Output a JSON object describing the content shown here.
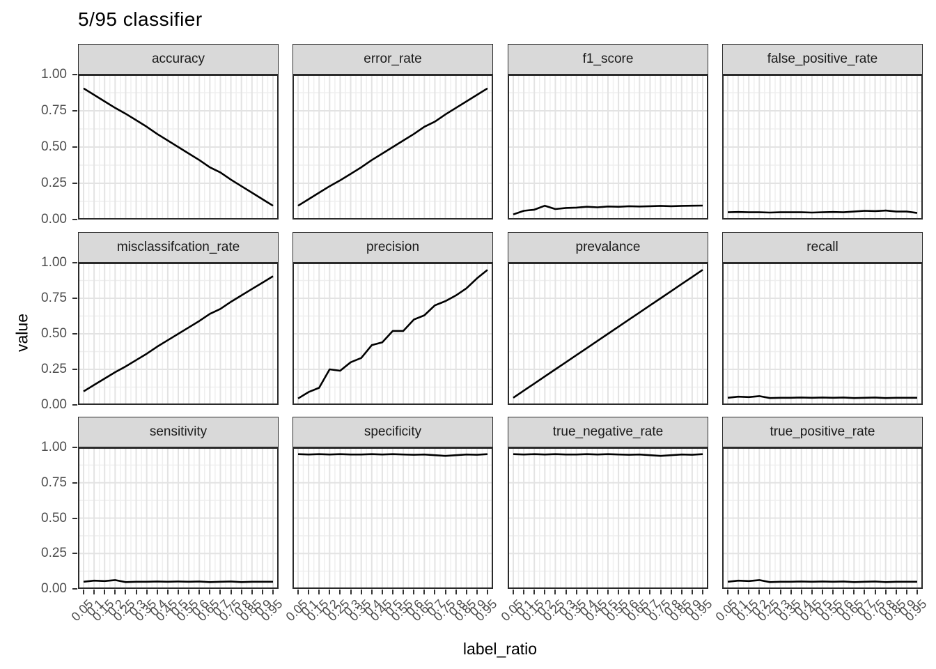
{
  "title": "5/95 classifier",
  "axes": {
    "x_label": "label_ratio",
    "y_label": "value",
    "x_tick_labels": [
      "0.05",
      "0.1",
      "0.15",
      "0.2",
      "0.25",
      "0.3",
      "0.35",
      "0.4",
      "0.45",
      "0.5",
      "0.55",
      "0.6",
      "0.65",
      "0.7",
      "0.75",
      "0.8",
      "0.85",
      "0.9",
      "0.95"
    ],
    "y_tick_labels": [
      "0.00",
      "0.25",
      "0.50",
      "0.75",
      "1.00"
    ]
  },
  "colors": {
    "background": "#ffffff",
    "strip_bg": "#d9d9d9",
    "panel_bg": "#ffffff",
    "grid_major": "#e3e3e3",
    "grid_minor": "#efefef",
    "panel_border": "#2b2b2b",
    "line": "#000000",
    "tick_label": "#4d4d4d",
    "tick_mark": "#333333",
    "text": "#000000"
  },
  "chart_data": {
    "type": "line",
    "title": "5/95 classifier",
    "xlabel": "label_ratio",
    "ylabel": "value",
    "xlim": [
      0.05,
      0.95
    ],
    "ylim": [
      0,
      1
    ],
    "grid": "major and minor, light gray on white, all facets",
    "legend": "none",
    "layout": "facet grid 3 rows x 4 columns, shared axes",
    "x": [
      0.05,
      0.1,
      0.15,
      0.2,
      0.25,
      0.3,
      0.35,
      0.4,
      0.45,
      0.5,
      0.55,
      0.6,
      0.65,
      0.7,
      0.75,
      0.8,
      0.85,
      0.9,
      0.95
    ],
    "facets": [
      {
        "name": "accuracy",
        "values": [
          0.905,
          0.86,
          0.815,
          0.77,
          0.73,
          0.685,
          0.64,
          0.59,
          0.545,
          0.5,
          0.455,
          0.41,
          0.36,
          0.325,
          0.275,
          0.23,
          0.185,
          0.14,
          0.095
        ]
      },
      {
        "name": "error_rate",
        "values": [
          0.095,
          0.14,
          0.185,
          0.23,
          0.27,
          0.315,
          0.36,
          0.41,
          0.455,
          0.5,
          0.545,
          0.59,
          0.64,
          0.675,
          0.725,
          0.77,
          0.815,
          0.86,
          0.905
        ]
      },
      {
        "name": "f1_score",
        "values": [
          0.035,
          0.06,
          0.068,
          0.095,
          0.072,
          0.08,
          0.082,
          0.088,
          0.084,
          0.09,
          0.088,
          0.092,
          0.09,
          0.092,
          0.094,
          0.092,
          0.094,
          0.095,
          0.096
        ]
      },
      {
        "name": "false_positive_rate",
        "values": [
          0.05,
          0.052,
          0.05,
          0.05,
          0.048,
          0.05,
          0.05,
          0.05,
          0.048,
          0.05,
          0.052,
          0.05,
          0.055,
          0.06,
          0.058,
          0.062,
          0.055,
          0.055,
          0.045
        ]
      },
      {
        "name": "misclassifcation_rate",
        "values": [
          0.095,
          0.14,
          0.185,
          0.23,
          0.27,
          0.315,
          0.36,
          0.41,
          0.455,
          0.5,
          0.545,
          0.59,
          0.64,
          0.675,
          0.725,
          0.77,
          0.815,
          0.86,
          0.905
        ]
      },
      {
        "name": "precision",
        "values": [
          0.045,
          0.09,
          0.12,
          0.25,
          0.24,
          0.3,
          0.33,
          0.42,
          0.44,
          0.52,
          0.52,
          0.6,
          0.63,
          0.7,
          0.73,
          0.77,
          0.82,
          0.89,
          0.95
        ]
      },
      {
        "name": "prevalance",
        "values": [
          0.05,
          0.1,
          0.15,
          0.2,
          0.25,
          0.3,
          0.35,
          0.4,
          0.45,
          0.5,
          0.55,
          0.6,
          0.65,
          0.7,
          0.75,
          0.8,
          0.85,
          0.9,
          0.95
        ]
      },
      {
        "name": "recall",
        "values": [
          0.05,
          0.058,
          0.055,
          0.062,
          0.048,
          0.05,
          0.05,
          0.052,
          0.05,
          0.052,
          0.05,
          0.052,
          0.048,
          0.05,
          0.052,
          0.048,
          0.05,
          0.05,
          0.05
        ]
      },
      {
        "name": "sensitivity",
        "values": [
          0.05,
          0.058,
          0.055,
          0.062,
          0.048,
          0.05,
          0.05,
          0.052,
          0.05,
          0.052,
          0.05,
          0.052,
          0.048,
          0.05,
          0.052,
          0.048,
          0.05,
          0.05,
          0.05
        ]
      },
      {
        "name": "specificity",
        "values": [
          0.952,
          0.95,
          0.952,
          0.95,
          0.952,
          0.95,
          0.95,
          0.952,
          0.95,
          0.952,
          0.95,
          0.948,
          0.95,
          0.945,
          0.94,
          0.945,
          0.95,
          0.948,
          0.952
        ]
      },
      {
        "name": "true_negative_rate",
        "values": [
          0.952,
          0.95,
          0.952,
          0.95,
          0.952,
          0.95,
          0.95,
          0.952,
          0.95,
          0.952,
          0.95,
          0.948,
          0.95,
          0.945,
          0.94,
          0.945,
          0.95,
          0.948,
          0.952
        ]
      },
      {
        "name": "true_positive_rate",
        "values": [
          0.05,
          0.058,
          0.055,
          0.062,
          0.048,
          0.05,
          0.05,
          0.052,
          0.05,
          0.052,
          0.05,
          0.052,
          0.048,
          0.05,
          0.052,
          0.048,
          0.05,
          0.05,
          0.05
        ]
      }
    ]
  }
}
